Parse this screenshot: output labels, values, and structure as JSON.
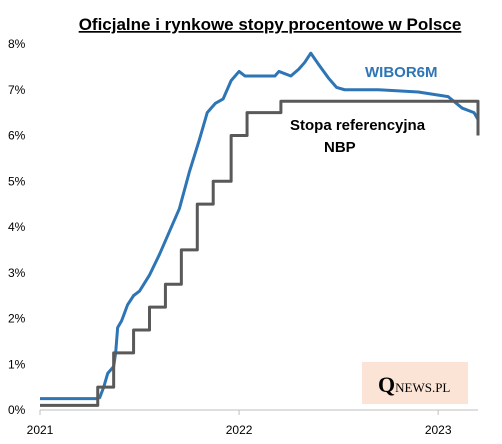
{
  "chart_data": {
    "type": "line",
    "title": "Oficjalne i rynkowe stopy procentowe w Polsce",
    "xlabel": "",
    "ylabel": "",
    "ylim": [
      0,
      8
    ],
    "y_ticks": [
      "0%",
      "1%",
      "2%",
      "3%",
      "4%",
      "5%",
      "6%",
      "7%",
      "8%"
    ],
    "x_ticks": [
      {
        "value": 2021,
        "label": "2021"
      },
      {
        "value": 2022,
        "label": "2022"
      },
      {
        "value": 2023,
        "label": "2023"
      }
    ],
    "xlim": [
      2021.0,
      2023.2
    ],
    "grid": false,
    "series": [
      {
        "name": "WIBOR6M",
        "color": "#2e75b6",
        "points": [
          [
            2021.0,
            0.25
          ],
          [
            2021.28,
            0.25
          ],
          [
            2021.3,
            0.27
          ],
          [
            2021.32,
            0.5
          ],
          [
            2021.34,
            0.8
          ],
          [
            2021.37,
            0.95
          ],
          [
            2021.38,
            1.25
          ],
          [
            2021.39,
            1.8
          ],
          [
            2021.41,
            1.95
          ],
          [
            2021.44,
            2.3
          ],
          [
            2021.47,
            2.5
          ],
          [
            2021.5,
            2.6
          ],
          [
            2021.55,
            2.95
          ],
          [
            2021.6,
            3.4
          ],
          [
            2021.65,
            3.9
          ],
          [
            2021.7,
            4.4
          ],
          [
            2021.75,
            5.2
          ],
          [
            2021.8,
            5.9
          ],
          [
            2021.84,
            6.5
          ],
          [
            2021.88,
            6.7
          ],
          [
            2021.92,
            6.8
          ],
          [
            2021.96,
            7.2
          ],
          [
            2022.0,
            7.4
          ],
          [
            2022.03,
            7.3
          ],
          [
            2022.1,
            7.3
          ],
          [
            2022.18,
            7.3
          ],
          [
            2022.2,
            7.4
          ],
          [
            2022.26,
            7.3
          ],
          [
            2022.3,
            7.45
          ],
          [
            2022.33,
            7.6
          ],
          [
            2022.36,
            7.8
          ],
          [
            2022.4,
            7.55
          ],
          [
            2022.45,
            7.25
          ],
          [
            2022.49,
            7.05
          ],
          [
            2022.53,
            7.0
          ],
          [
            2022.7,
            7.0
          ],
          [
            2022.9,
            6.95
          ],
          [
            2023.05,
            6.85
          ],
          [
            2023.12,
            6.6
          ],
          [
            2023.18,
            6.5
          ],
          [
            2023.2,
            6.35
          ]
        ]
      },
      {
        "name": "Stopa referencyjna NBP",
        "color": "#595959",
        "step": true,
        "points": [
          [
            2021.0,
            0.1
          ],
          [
            2021.29,
            0.5
          ],
          [
            2021.37,
            1.25
          ],
          [
            2021.47,
            1.75
          ],
          [
            2021.55,
            2.25
          ],
          [
            2021.63,
            2.75
          ],
          [
            2021.71,
            3.5
          ],
          [
            2021.79,
            4.5
          ],
          [
            2021.87,
            5.0
          ],
          [
            2021.96,
            6.0
          ],
          [
            2022.04,
            6.5
          ],
          [
            2022.21,
            6.75
          ],
          [
            2023.2,
            6.0
          ]
        ]
      }
    ],
    "labels": {
      "wibor": "WIBOR6M",
      "nbp_line1": "Stopa referencyjna",
      "nbp_line2": "NBP"
    }
  },
  "logo": {
    "q": "Q",
    "rest": "NEWS.PL",
    "bg": "#fbe4d5"
  }
}
